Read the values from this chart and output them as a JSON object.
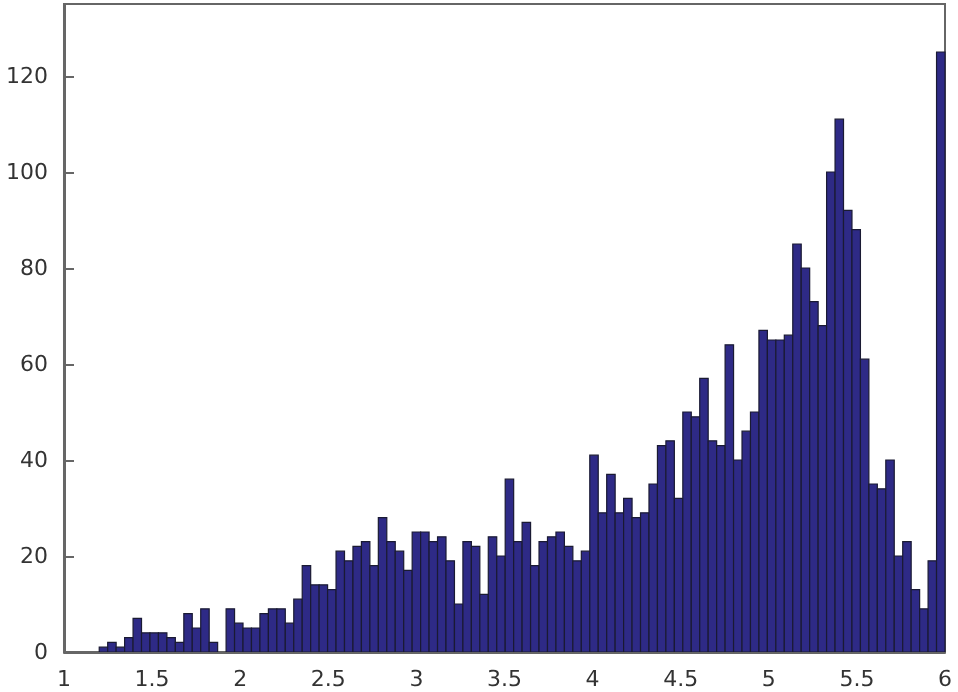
{
  "chart_data": {
    "type": "histogram",
    "color": "#2e2a86",
    "bins": [
      1.2,
      1.248,
      1.296,
      1.344,
      1.392,
      1.44,
      1.488,
      1.536,
      1.584,
      1.632,
      1.68,
      1.728,
      1.776,
      1.824,
      1.872,
      1.92,
      1.968,
      2.016,
      2.064,
      2.112,
      2.16,
      2.208,
      2.256,
      2.304,
      2.352,
      2.4,
      2.448,
      2.496,
      2.544,
      2.592,
      2.64,
      2.688,
      2.736,
      2.784,
      2.832,
      2.88,
      2.928,
      2.976,
      3.024,
      3.072,
      3.12,
      3.168,
      3.216,
      3.264,
      3.312,
      3.36,
      3.408,
      3.456,
      3.504,
      3.552,
      3.6,
      3.648,
      3.696,
      3.744,
      3.792,
      3.84,
      3.888,
      3.936,
      3.984,
      4.032,
      4.08,
      4.128,
      4.176,
      4.224,
      4.272,
      4.32,
      4.368,
      4.416,
      4.464,
      4.512,
      4.56,
      4.608,
      4.656,
      4.704,
      4.752,
      4.8,
      4.848,
      4.896,
      4.944,
      4.992,
      5.04,
      5.088,
      5.136,
      5.184,
      5.232,
      5.28,
      5.328,
      5.376,
      5.424,
      5.472,
      5.52,
      5.568,
      5.616,
      5.664,
      5.712,
      5.76,
      5.808,
      5.856,
      5.904,
      5.952,
      6
    ],
    "values": [
      1,
      2,
      1,
      3,
      7,
      4,
      4,
      4,
      3,
      2,
      8,
      5,
      9,
      2,
      0,
      9,
      6,
      5,
      5,
      8,
      9,
      9,
      6,
      11,
      18,
      14,
      14,
      13,
      21,
      19,
      22,
      23,
      18,
      28,
      23,
      21,
      17,
      25,
      25,
      23,
      24,
      19,
      10,
      23,
      22,
      12,
      24,
      20,
      36,
      23,
      27,
      18,
      23,
      24,
      25,
      22,
      19,
      21,
      41,
      29,
      37,
      29,
      32,
      28,
      29,
      35,
      43,
      44,
      32,
      50,
      49,
      57,
      44,
      43,
      64,
      40,
      46,
      50,
      67,
      65,
      65,
      66,
      85,
      80,
      73,
      68,
      100,
      111,
      92,
      88,
      61,
      35,
      34,
      40,
      20,
      23,
      13,
      9,
      19,
      125
    ],
    "xlim": [
      1,
      6
    ],
    "xticks": [
      1,
      1.5,
      2,
      2.5,
      3,
      3.5,
      4,
      4.5,
      5,
      5.5,
      6
    ],
    "ylim": [
      0,
      135
    ],
    "yticks": [
      0,
      20,
      40,
      60,
      80,
      100,
      120
    ],
    "grid": false
  }
}
